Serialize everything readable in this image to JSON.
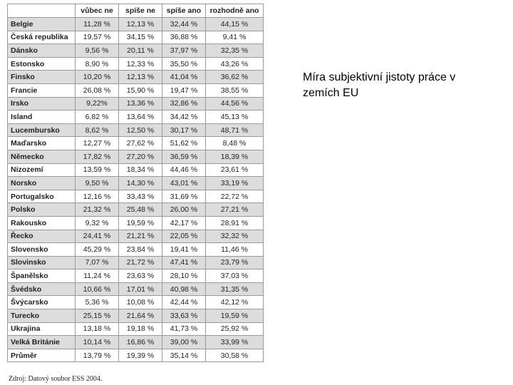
{
  "table": {
    "header": [
      "vůbec ne",
      "spíše ne",
      "spíše ano",
      "rozhodně ano"
    ],
    "rows": [
      [
        "Belgie",
        "11,28 %",
        "12,13 %",
        "32,44 %",
        "44,15 %"
      ],
      [
        "Česká republika",
        "19,57 %",
        "34,15 %",
        "36,88 %",
        "9,41 %"
      ],
      [
        "Dánsko",
        "9,56 %",
        "20,11 %",
        "37,97 %",
        "32,35 %"
      ],
      [
        "Estonsko",
        "8,90 %",
        "12,33 %",
        "35,50 %",
        "43,26 %"
      ],
      [
        "Finsko",
        "10,20 %",
        "12,13 %",
        "41,04 %",
        "36,62 %"
      ],
      [
        "Francie",
        "26,08 %",
        "15,90 %",
        "19,47 %",
        "38,55 %"
      ],
      [
        "Irsko",
        "9,22%",
        "13,36 %",
        "32,86 %",
        "44,56 %"
      ],
      [
        "Island",
        "6,82 %",
        "13,64 %",
        "34,42 %",
        "45,13 %"
      ],
      [
        "Lucembursko",
        "8,62 %",
        "12,50 %",
        "30,17 %",
        "48,71 %"
      ],
      [
        "Maďarsko",
        "12,27 %",
        "27,62 %",
        "51,62 %",
        "8,48 %"
      ],
      [
        "Německo",
        "17,82 %",
        "27,20 %",
        "36,59 %",
        "18,39 %"
      ],
      [
        "Nizozemí",
        "13,59 %",
        "18,34 %",
        "44,46 %",
        "23,61 %"
      ],
      [
        "Norsko",
        "9,50 %",
        "14,30 %",
        "43,01 %",
        "33,19 %"
      ],
      [
        "Portugalsko",
        "12,16 %",
        "33,43 %",
        "31,69 %",
        "22,72 %"
      ],
      [
        "Polsko",
        "21,32 %",
        "25,48 %",
        "26,00 %",
        "27,21 %"
      ],
      [
        "Rakousko",
        "9,32 %",
        "19,59 %",
        "42,17 %",
        "28,91 %"
      ],
      [
        "Řecko",
        "24,41 %",
        "21,21 %",
        "22,05 %",
        "32,32 %"
      ],
      [
        "Slovensko",
        "45,29 %",
        "23,84 %",
        "19,41 %",
        "11,46 %"
      ],
      [
        "Slovinsko",
        "7,07 %",
        "21,72 %",
        "47,41 %",
        "23,79 %"
      ],
      [
        "Španělsko",
        "11,24 %",
        "23,63 %",
        "28,10 %",
        "37,03 %"
      ],
      [
        "Švédsko",
        "10,66 %",
        "17,01 %",
        "40,98 %",
        "31,35 %"
      ],
      [
        "Švýcarsko",
        "5,36 %",
        "10,08 %",
        "42,44 %",
        "42,12 %"
      ],
      [
        "Turecko",
        "25,15 %",
        "21,64 %",
        "33,63 %",
        "19,59 %"
      ],
      [
        "Ukrajina",
        "13,18 %",
        "19,18 %",
        "41,73 %",
        "25,92 %"
      ],
      [
        "Velká Británie",
        "10,14 %",
        "16,86 %",
        "39,00 %",
        "33,99 %"
      ],
      [
        "Průměr",
        "13,79 %",
        "19,39 %",
        "35,14 %",
        "30,58 %"
      ]
    ]
  },
  "caption": "Míra subjektivní jistoty práce v zemích EU",
  "source": "Zdroj: Datový soubor ESS 2004."
}
